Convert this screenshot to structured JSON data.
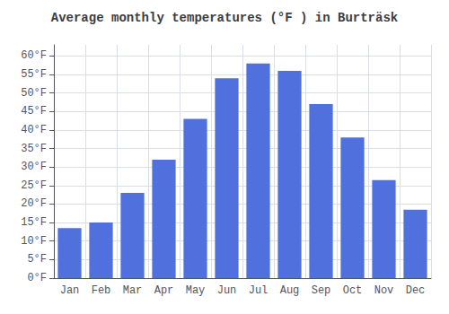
{
  "chart_data": {
    "type": "bar",
    "title": "Average monthly temperatures (°F ) in Burträsk",
    "categories": [
      "Jan",
      "Feb",
      "Mar",
      "Apr",
      "May",
      "Jun",
      "Jul",
      "Aug",
      "Sep",
      "Oct",
      "Nov",
      "Dec"
    ],
    "values": [
      13.5,
      15.0,
      23.0,
      32.0,
      43.0,
      54.0,
      58.0,
      56.0,
      47.0,
      38.0,
      26.5,
      18.5
    ],
    "ylim": [
      0,
      63
    ],
    "yticks": [
      {
        "value": 0,
        "label": "0°F"
      },
      {
        "value": 5,
        "label": "5°F"
      },
      {
        "value": 10,
        "label": "10°F"
      },
      {
        "value": 15,
        "label": "15°F"
      },
      {
        "value": 20,
        "label": "20°F"
      },
      {
        "value": 25,
        "label": "25°F"
      },
      {
        "value": 30,
        "label": "30°F"
      },
      {
        "value": 35,
        "label": "35°F"
      },
      {
        "value": 40,
        "label": "40°F"
      },
      {
        "value": 45,
        "label": "45°F"
      },
      {
        "value": 50,
        "label": "50°F"
      },
      {
        "value": 55,
        "label": "55°F"
      },
      {
        "value": 60,
        "label": "60°F"
      }
    ],
    "grid": true
  }
}
